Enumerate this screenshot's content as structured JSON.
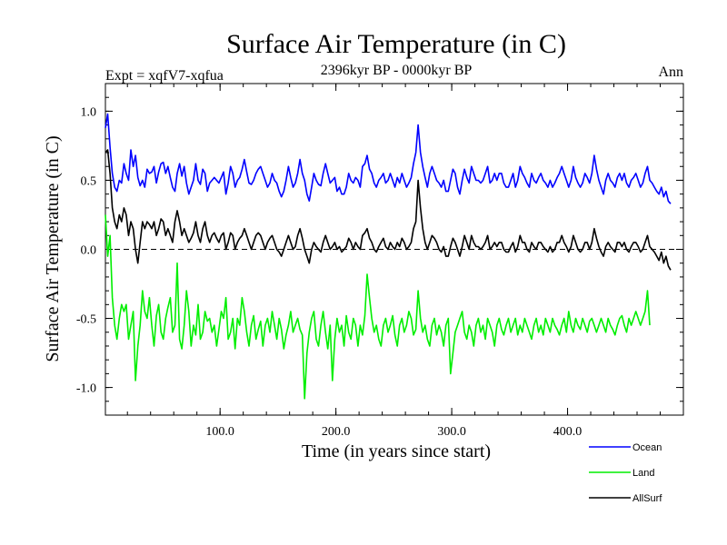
{
  "chart_data": {
    "type": "line",
    "title": "Surface Air Temperature (in C)",
    "subtitle": "2396kyr BP - 0000kyr BP",
    "experiment_label": "Expt = xqfV7-xqfua",
    "season_label": "Ann",
    "xlabel": "Time (in years since start)",
    "ylabel": "Surface Air Temperature (in C)",
    "xlim": [
      1,
      500
    ],
    "ylim": [
      -1.2,
      1.2
    ],
    "x_ticks": [
      100,
      200,
      300,
      400
    ],
    "x_tick_labels": [
      "100.0",
      "200.0",
      "300.0",
      "400.0"
    ],
    "y_ticks": [
      -1.0,
      -0.5,
      0.0,
      0.5,
      1.0
    ],
    "y_tick_labels": [
      "-1.0",
      "-0.5",
      "0.0",
      "0.5",
      "1.0"
    ],
    "reference_line": 0.0,
    "legend": [
      "Ocean",
      "Land",
      "AllSurf"
    ],
    "legend_placement": "bottom-right, below plot",
    "x_step": 2,
    "series": [
      {
        "name": "Ocean",
        "color": "#0000ff",
        "values": [
          0.88,
          0.98,
          0.74,
          0.55,
          0.45,
          0.42,
          0.5,
          0.48,
          0.62,
          0.55,
          0.5,
          0.72,
          0.6,
          0.68,
          0.52,
          0.46,
          0.5,
          0.45,
          0.58,
          0.55,
          0.56,
          0.6,
          0.48,
          0.56,
          0.62,
          0.63,
          0.55,
          0.6,
          0.52,
          0.45,
          0.42,
          0.55,
          0.62,
          0.53,
          0.6,
          0.48,
          0.4,
          0.45,
          0.5,
          0.62,
          0.5,
          0.47,
          0.58,
          0.55,
          0.42,
          0.48,
          0.5,
          0.52,
          0.5,
          0.48,
          0.52,
          0.56,
          0.4,
          0.48,
          0.6,
          0.55,
          0.45,
          0.5,
          0.52,
          0.58,
          0.65,
          0.56,
          0.48,
          0.47,
          0.5,
          0.55,
          0.58,
          0.6,
          0.55,
          0.5,
          0.45,
          0.48,
          0.55,
          0.5,
          0.48,
          0.42,
          0.38,
          0.42,
          0.5,
          0.6,
          0.52,
          0.45,
          0.48,
          0.55,
          0.65,
          0.55,
          0.5,
          0.4,
          0.35,
          0.45,
          0.55,
          0.5,
          0.47,
          0.46,
          0.55,
          0.62,
          0.55,
          0.48,
          0.5,
          0.52,
          0.42,
          0.45,
          0.4,
          0.4,
          0.45,
          0.55,
          0.5,
          0.48,
          0.52,
          0.5,
          0.45,
          0.6,
          0.62,
          0.68,
          0.58,
          0.55,
          0.48,
          0.45,
          0.5,
          0.52,
          0.55,
          0.48,
          0.5,
          0.55,
          0.5,
          0.45,
          0.52,
          0.48,
          0.55,
          0.5,
          0.45,
          0.48,
          0.52,
          0.62,
          0.7,
          0.9,
          0.7,
          0.6,
          0.52,
          0.45,
          0.55,
          0.6,
          0.55,
          0.5,
          0.48,
          0.45,
          0.5,
          0.42,
          0.42,
          0.5,
          0.58,
          0.55,
          0.45,
          0.4,
          0.5,
          0.58,
          0.52,
          0.48,
          0.6,
          0.55,
          0.5,
          0.5,
          0.48,
          0.5,
          0.55,
          0.6,
          0.48,
          0.5,
          0.55,
          0.5,
          0.55,
          0.55,
          0.48,
          0.45,
          0.45,
          0.5,
          0.55,
          0.45,
          0.5,
          0.6,
          0.55,
          0.52,
          0.48,
          0.45,
          0.55,
          0.5,
          0.48,
          0.52,
          0.55,
          0.5,
          0.48,
          0.45,
          0.5,
          0.45,
          0.48,
          0.52,
          0.55,
          0.6,
          0.55,
          0.5,
          0.45,
          0.5,
          0.6,
          0.52,
          0.48,
          0.45,
          0.48,
          0.55,
          0.52,
          0.48,
          0.55,
          0.68,
          0.58,
          0.5,
          0.45,
          0.4,
          0.5,
          0.55,
          0.5,
          0.48,
          0.45,
          0.52,
          0.55,
          0.5,
          0.55,
          0.48,
          0.45,
          0.5,
          0.52,
          0.55,
          0.5,
          0.45,
          0.48,
          0.55,
          0.6,
          0.5,
          0.48,
          0.45,
          0.42,
          0.4,
          0.45,
          0.38,
          0.42,
          0.35,
          0.33
        ]
      },
      {
        "name": "Land",
        "color": "#00ee00",
        "values": [
          0.25,
          -0.05,
          0.1,
          -0.35,
          -0.55,
          -0.65,
          -0.5,
          -0.4,
          -0.45,
          -0.4,
          -0.65,
          -0.55,
          -0.45,
          -0.95,
          -0.7,
          -0.55,
          -0.3,
          -0.45,
          -0.5,
          -0.35,
          -0.55,
          -0.7,
          -0.48,
          -0.4,
          -0.6,
          -0.65,
          -0.5,
          -0.42,
          -0.35,
          -0.6,
          -0.55,
          -0.1,
          -0.65,
          -0.72,
          -0.55,
          -0.3,
          -0.45,
          -0.7,
          -0.55,
          -0.62,
          -0.4,
          -0.65,
          -0.6,
          -0.45,
          -0.52,
          -0.5,
          -0.6,
          -0.55,
          -0.7,
          -0.58,
          -0.45,
          -0.5,
          -0.35,
          -0.65,
          -0.6,
          -0.5,
          -0.72,
          -0.5,
          -0.55,
          -0.35,
          -0.45,
          -0.6,
          -0.7,
          -0.55,
          -0.48,
          -0.65,
          -0.58,
          -0.52,
          -0.7,
          -0.55,
          -0.5,
          -0.6,
          -0.45,
          -0.55,
          -0.65,
          -0.5,
          -0.58,
          -0.72,
          -0.62,
          -0.55,
          -0.45,
          -0.6,
          -0.55,
          -0.5,
          -0.58,
          -0.62,
          -1.08,
          -0.75,
          -0.6,
          -0.5,
          -0.45,
          -0.65,
          -0.7,
          -0.55,
          -0.45,
          -0.6,
          -0.72,
          -0.55,
          -0.95,
          -0.65,
          -0.5,
          -0.6,
          -0.55,
          -0.7,
          -0.48,
          -0.6,
          -0.65,
          -0.5,
          -0.55,
          -0.7,
          -0.55,
          -0.62,
          -0.48,
          -0.18,
          -0.35,
          -0.5,
          -0.6,
          -0.55,
          -0.65,
          -0.7,
          -0.55,
          -0.5,
          -0.6,
          -0.55,
          -0.48,
          -0.62,
          -0.7,
          -0.55,
          -0.5,
          -0.6,
          -0.55,
          -0.45,
          -0.5,
          -0.62,
          -0.58,
          -0.3,
          -0.5,
          -0.6,
          -0.55,
          -0.65,
          -0.7,
          -0.55,
          -0.5,
          -0.62,
          -0.55,
          -0.6,
          -0.7,
          -0.55,
          -0.5,
          -0.9,
          -0.75,
          -0.6,
          -0.55,
          -0.5,
          -0.45,
          -0.6,
          -0.65,
          -0.55,
          -0.6,
          -0.7,
          -0.55,
          -0.5,
          -0.6,
          -0.55,
          -0.65,
          -0.5,
          -0.55,
          -0.6,
          -0.7,
          -0.55,
          -0.5,
          -0.58,
          -0.62,
          -0.55,
          -0.5,
          -0.6,
          -0.55,
          -0.5,
          -0.62,
          -0.55,
          -0.6,
          -0.5,
          -0.55,
          -0.6,
          -0.65,
          -0.55,
          -0.5,
          -0.6,
          -0.55,
          -0.62,
          -0.5,
          -0.55,
          -0.6,
          -0.5,
          -0.55,
          -0.58,
          -0.62,
          -0.55,
          -0.5,
          -0.6,
          -0.45,
          -0.55,
          -0.6,
          -0.5,
          -0.55,
          -0.58,
          -0.5,
          -0.55,
          -0.6,
          -0.52,
          -0.5,
          -0.55,
          -0.6,
          -0.55,
          -0.5,
          -0.55,
          -0.6,
          -0.5,
          -0.55,
          -0.58,
          -0.62,
          -0.55,
          -0.5,
          -0.48,
          -0.55,
          -0.6,
          -0.5,
          -0.55,
          -0.5,
          -0.45,
          -0.5,
          -0.55,
          -0.5,
          -0.45,
          -0.3,
          -0.55
        ]
      },
      {
        "name": "AllSurf",
        "color": "#000000",
        "values": [
          0.7,
          0.72,
          0.55,
          0.3,
          0.2,
          0.15,
          0.25,
          0.2,
          0.3,
          0.25,
          0.1,
          0.2,
          0.15,
          0.0,
          -0.1,
          0.05,
          0.2,
          0.15,
          0.2,
          0.18,
          0.15,
          0.2,
          0.1,
          0.15,
          0.22,
          0.2,
          0.1,
          0.15,
          0.1,
          0.05,
          0.2,
          0.28,
          0.2,
          0.1,
          0.15,
          0.1,
          0.05,
          0.08,
          0.12,
          0.2,
          0.1,
          0.05,
          0.15,
          0.2,
          0.1,
          0.05,
          0.1,
          0.12,
          0.08,
          0.05,
          0.1,
          0.12,
          0.0,
          0.05,
          0.12,
          0.1,
          0.0,
          0.05,
          0.08,
          0.1,
          0.15,
          0.1,
          0.05,
          0.0,
          0.05,
          0.1,
          0.12,
          0.1,
          0.05,
          0.0,
          0.05,
          0.08,
          0.1,
          0.05,
          0.0,
          -0.02,
          -0.05,
          0.0,
          0.05,
          0.1,
          0.05,
          0.0,
          0.02,
          0.1,
          0.15,
          0.08,
          0.0,
          -0.05,
          -0.1,
          0.0,
          0.05,
          0.02,
          0.0,
          -0.02,
          0.05,
          0.1,
          0.05,
          0.0,
          0.02,
          0.05,
          0.0,
          0.02,
          -0.02,
          0.0,
          0.02,
          0.08,
          0.05,
          0.0,
          0.05,
          0.02,
          0.0,
          0.1,
          0.12,
          0.15,
          0.08,
          0.05,
          0.0,
          -0.02,
          0.02,
          0.05,
          0.08,
          0.02,
          0.0,
          0.05,
          0.02,
          0.0,
          0.05,
          0.02,
          0.08,
          0.05,
          0.0,
          0.02,
          0.05,
          0.15,
          0.2,
          0.5,
          0.3,
          0.15,
          0.05,
          0.0,
          0.05,
          0.1,
          0.08,
          0.05,
          0.0,
          -0.02,
          0.02,
          -0.05,
          -0.05,
          0.02,
          0.08,
          0.05,
          0.0,
          -0.05,
          0.02,
          0.1,
          0.05,
          0.0,
          0.1,
          0.05,
          0.02,
          0.02,
          0.0,
          0.02,
          0.05,
          0.1,
          0.0,
          0.02,
          0.05,
          0.02,
          0.05,
          0.05,
          0.0,
          -0.02,
          -0.02,
          0.02,
          0.05,
          -0.02,
          0.02,
          0.1,
          0.05,
          0.05,
          0.0,
          -0.02,
          0.05,
          0.02,
          0.0,
          0.05,
          0.05,
          0.02,
          0.0,
          -0.02,
          0.02,
          -0.02,
          0.0,
          0.05,
          0.05,
          0.1,
          0.05,
          0.02,
          -0.02,
          0.02,
          0.1,
          0.05,
          0.0,
          -0.02,
          0.0,
          0.05,
          0.05,
          0.0,
          0.05,
          0.15,
          0.08,
          0.02,
          -0.02,
          -0.05,
          0.02,
          0.05,
          0.02,
          0.0,
          -0.02,
          0.05,
          0.05,
          0.02,
          0.05,
          0.0,
          -0.02,
          0.02,
          0.05,
          0.05,
          0.02,
          -0.02,
          0.0,
          0.05,
          0.1,
          0.02,
          0.0,
          -0.02,
          -0.05,
          -0.08,
          -0.02,
          -0.1,
          -0.05,
          -0.12,
          -0.15
        ]
      }
    ]
  }
}
